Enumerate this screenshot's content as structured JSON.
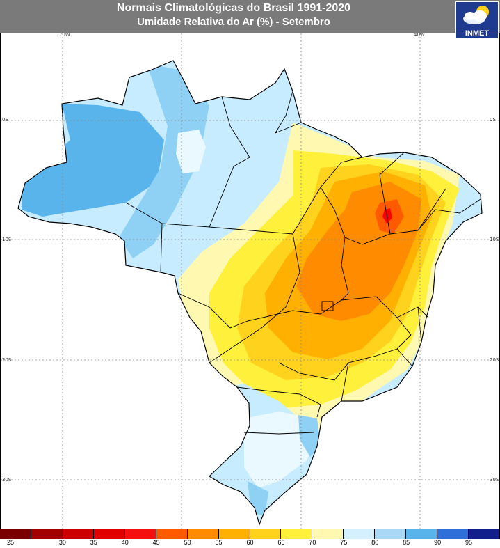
{
  "title": {
    "line1": "Normais Climatológicas do Brasil 1991-2020",
    "line2": "Umidade Relativa do Ar (%) - Setembro"
  },
  "logo": {
    "text": "INMET",
    "icon": "cloud-sun-icon"
  },
  "longitude_labels": [
    "70W",
    "40W"
  ],
  "latitude_labels": {
    "left": [
      "0S",
      "10S",
      "20S",
      "30S"
    ],
    "right": [
      "0S",
      "10S",
      "20S",
      "30S"
    ]
  },
  "colorbar": {
    "labels": [
      "25",
      "30",
      "35",
      "40",
      "45",
      "50",
      "55",
      "60",
      "65",
      "70",
      "75",
      "80",
      "85",
      "90",
      "95"
    ],
    "colors": [
      "#7a0000",
      "#a30000",
      "#cc0000",
      "#e00000",
      "#f51010",
      "#ff5a00",
      "#ff8c00",
      "#ffb000",
      "#ffd21e",
      "#fff03c",
      "#fff8b0",
      "#d4f0ff",
      "#a8d8f5",
      "#5ab4ec",
      "#2f6fd9",
      "#101f8c"
    ]
  },
  "map": {
    "country": "Brasil",
    "colors": {
      "rh50": "#ff8c00",
      "rh55": "#ffb000",
      "rh60": "#ffd21e",
      "rh65": "#fff03c",
      "rh70": "#fff8b0",
      "rh75": "#eaf8ff",
      "rh80": "#c8ecff",
      "rh85": "#8fd0f5",
      "rh90": "#5ab4ec",
      "red": "#ff0000"
    }
  }
}
